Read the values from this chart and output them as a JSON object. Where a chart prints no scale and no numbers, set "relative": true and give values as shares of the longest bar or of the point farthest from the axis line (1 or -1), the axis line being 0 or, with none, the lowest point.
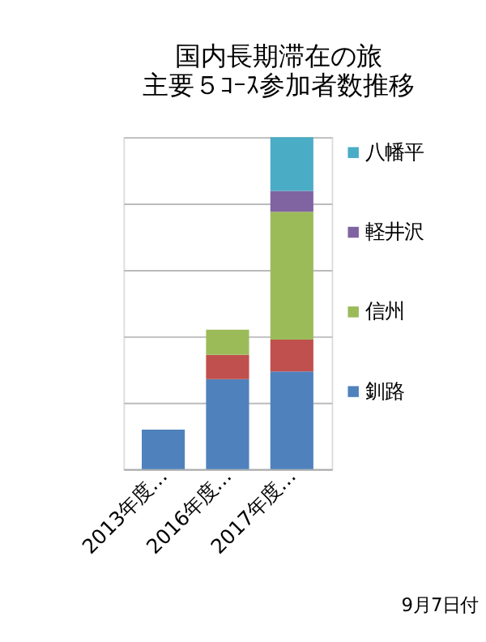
{
  "chart_data": {
    "type": "bar",
    "stacked": true,
    "relative": true,
    "title": "国内長期滞在の旅",
    "subtitle": "主要５ｺｰｽ参加者数推移",
    "categories": [
      "2013年度…",
      "2016年度…",
      "2017年度…"
    ],
    "series": [
      {
        "name": "釧路",
        "color": "#4f81bd",
        "values": [
          0.119,
          0.271,
          0.294
        ]
      },
      {
        "color": "#c0504d",
        "values": [
          null,
          0.073,
          0.096
        ]
      },
      {
        "name": "信州",
        "color": "#9bbb59",
        "values": [
          null,
          0.076,
          0.385
        ]
      },
      {
        "name": "軽井沢",
        "color": "#8064a2",
        "values": [
          null,
          null,
          0.063
        ]
      },
      {
        "name": "八幡平",
        "color": "#4bacc6",
        "values": [
          null,
          null,
          0.162
        ]
      }
    ],
    "grid": "y",
    "legend": "right",
    "annotations": [
      "9月7日付"
    ]
  }
}
